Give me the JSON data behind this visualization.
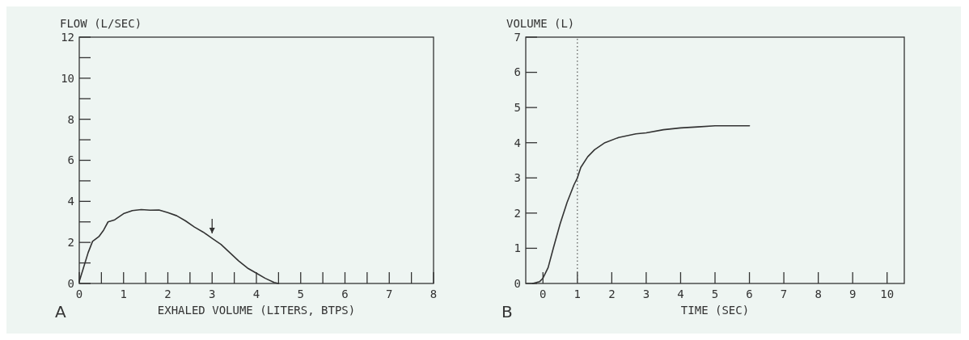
{
  "chart_data": [
    {
      "type": "line",
      "ylabel": "FLOW (L/SEC)",
      "xlabel": "EXHALED VOLUME (LITERS, BTPS)",
      "annotations": [
        "A"
      ],
      "x": [
        0,
        0.1,
        0.2,
        0.3,
        0.45,
        0.55,
        0.65,
        0.8,
        1.0,
        1.2,
        1.4,
        1.6,
        1.8,
        2.0,
        2.2,
        2.4,
        2.6,
        2.8,
        3.0,
        3.2,
        3.4,
        3.6,
        3.8,
        4.0,
        4.2,
        4.4,
        4.5
      ],
      "series": [
        {
          "color": "#333333",
          "values": [
            0.1,
            0.8,
            1.5,
            2.05,
            2.3,
            2.6,
            3.0,
            3.1,
            3.4,
            3.55,
            3.6,
            3.57,
            3.58,
            3.45,
            3.3,
            3.05,
            2.75,
            2.5,
            2.2,
            1.9,
            1.5,
            1.1,
            0.75,
            0.5,
            0.25,
            0.05,
            0
          ]
        }
      ],
      "xlim": [
        0,
        8
      ],
      "ylim": [
        0,
        12
      ],
      "xticks": [
        0,
        {
          "value": 0.5,
          "label": null
        },
        1,
        {
          "value": 1.5,
          "label": null
        },
        2,
        {
          "value": 2.5,
          "label": null
        },
        3,
        {
          "value": 3.5,
          "label": null
        },
        4,
        {
          "value": 4.5,
          "label": null
        },
        5,
        {
          "value": 5.5,
          "label": null
        },
        6,
        {
          "value": 6.5,
          "label": null
        },
        7,
        {
          "value": 7.5,
          "label": null
        },
        8
      ],
      "yticks": [
        0,
        {
          "value": 1,
          "label": null
        },
        2,
        {
          "value": 3,
          "label": null
        },
        4,
        {
          "value": 5,
          "label": null
        },
        6,
        {
          "value": 7,
          "label": null
        },
        8,
        {
          "value": 9,
          "label": null
        },
        10,
        {
          "value": 11,
          "label": null
        },
        12
      ]
    },
    {
      "type": "line",
      "ylabel": "VOLUME (L)",
      "xlabel": "TIME (SEC)",
      "annotations": [
        "B"
      ],
      "x": [
        -0.3,
        -0.1,
        0,
        0.15,
        0.3,
        0.5,
        0.7,
        0.9,
        1.0,
        1.1,
        1.3,
        1.5,
        1.8,
        2.2,
        2.7,
        3.0,
        3.5,
        4.0,
        4.5,
        5.0,
        6.0
      ],
      "series": [
        {
          "color": "#333333",
          "values": [
            0,
            0.05,
            0.15,
            0.45,
            1.0,
            1.7,
            2.3,
            2.8,
            3.0,
            3.3,
            3.6,
            3.8,
            4.0,
            4.15,
            4.25,
            4.28,
            4.37,
            4.42,
            4.45,
            4.48,
            4.48
          ]
        }
      ],
      "xlim": [
        -0.5,
        10.5
      ],
      "ylim": [
        0,
        7
      ],
      "xticks": [
        0,
        1,
        2,
        3,
        4,
        5,
        6,
        7,
        8,
        9,
        10
      ],
      "yticks": [
        0,
        1,
        2,
        3,
        4,
        5,
        6,
        7
      ],
      "ref_lines": [
        {
          "axis": "x",
          "value": 1,
          "line_style": "dotted",
          "color": "#555555"
        }
      ]
    }
  ]
}
